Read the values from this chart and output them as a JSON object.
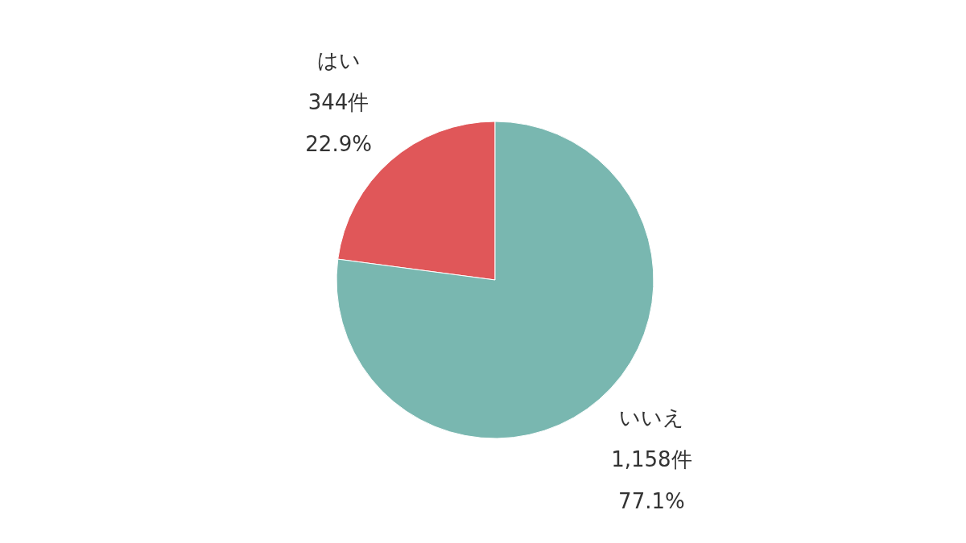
{
  "chart_data": {
    "type": "pie",
    "categories": [
      "はい",
      "いいえ"
    ],
    "values": [
      344,
      1158
    ],
    "colors": [
      "#e05759",
      "#79b7b0"
    ],
    "value_labels": [
      "344件\n22.9%",
      "1,158件\n77.1%"
    ]
  }
}
